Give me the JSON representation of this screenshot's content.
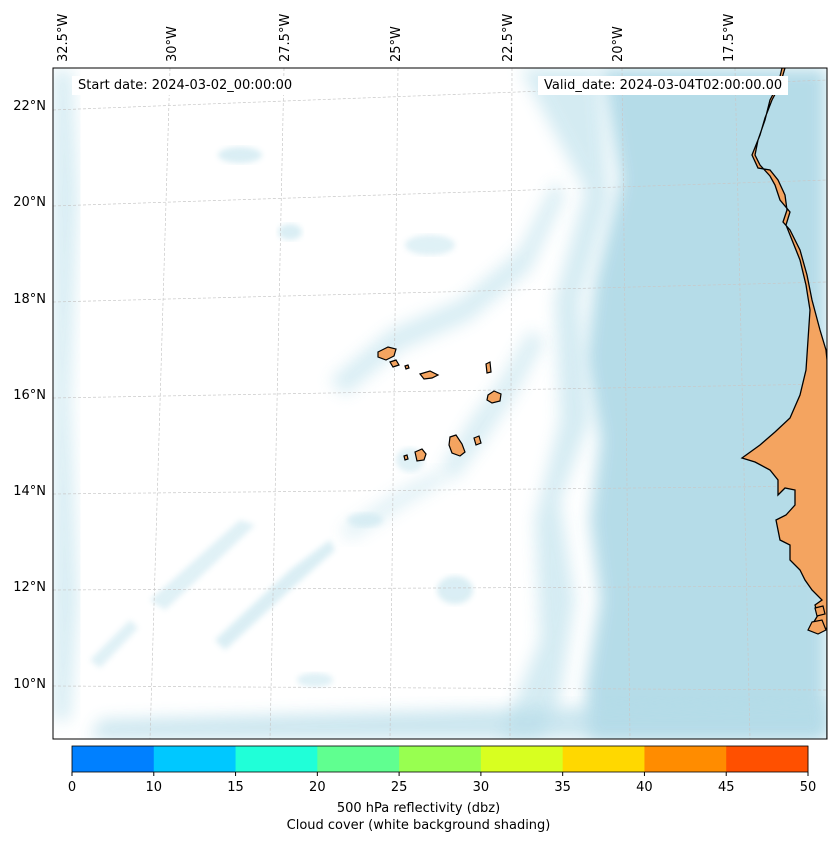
{
  "header": {
    "start_date": "Start date: 2024-03-02_00:00:00",
    "valid_date": "Valid_date: 2024-03-04T02:00:00.00"
  },
  "map": {
    "lon_labels": [
      "32.5°W",
      "30°W",
      "27.5°W",
      "25°W",
      "22.5°W",
      "20°W",
      "17.5°W"
    ],
    "lat_labels": [
      "22°N",
      "20°N",
      "18°N",
      "16°N",
      "14°N",
      "12°N",
      "10°N"
    ],
    "land_color": "#f4a460",
    "cloud_color": "#add8e6",
    "coast_color": "#000000"
  },
  "colorbar": {
    "ticks": [
      "0",
      "10",
      "15",
      "20",
      "25",
      "30",
      "35",
      "40",
      "45",
      "50"
    ],
    "colors": [
      "#0080ff",
      "#00c8ff",
      "#20ffd8",
      "#60ff90",
      "#98ff50",
      "#d8ff20",
      "#ffd800",
      "#ff8c00",
      "#ff5000"
    ],
    "label_line1": "500 hPa reflectivity (dbz)",
    "label_line2": "Cloud cover (white background shading)"
  }
}
